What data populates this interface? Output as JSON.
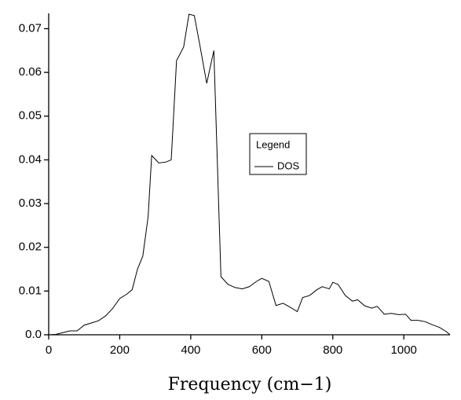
{
  "chart_data": {
    "type": "line",
    "xlabel": "Frequency (cm−1)",
    "legend_title": "Legend",
    "x": [
      0,
      20,
      40,
      60,
      80,
      100,
      120,
      140,
      160,
      180,
      200,
      220,
      235,
      250,
      265,
      280,
      290,
      310,
      330,
      345,
      360,
      380,
      395,
      410,
      425,
      445,
      465,
      485,
      505,
      525,
      545,
      565,
      585,
      600,
      620,
      640,
      660,
      680,
      700,
      715,
      735,
      755,
      770,
      790,
      800,
      815,
      835,
      855,
      870,
      890,
      910,
      925,
      945,
      965,
      985,
      1005,
      1020,
      1040,
      1060,
      1080,
      1100,
      1120,
      1130
    ],
    "series": [
      {
        "name": "DOS",
        "color": "#000000",
        "values": [
          0,
          0.0001,
          0.0005,
          0.0009,
          0.0009,
          0.0022,
          0.0027,
          0.0032,
          0.0043,
          0.006,
          0.0083,
          0.0093,
          0.0103,
          0.015,
          0.018,
          0.027,
          0.041,
          0.0393,
          0.0395,
          0.04,
          0.0627,
          0.0658,
          0.0733,
          0.073,
          0.0665,
          0.0575,
          0.065,
          0.0133,
          0.0115,
          0.0108,
          0.0105,
          0.011,
          0.0122,
          0.0129,
          0.0122,
          0.0067,
          0.0072,
          0.0063,
          0.0053,
          0.0085,
          0.009,
          0.0103,
          0.011,
          0.0105,
          0.012,
          0.0115,
          0.009,
          0.0077,
          0.008,
          0.0066,
          0.0061,
          0.0065,
          0.0047,
          0.0049,
          0.0046,
          0.0047,
          0.0033,
          0.0033,
          0.003,
          0.0023,
          0.0017,
          0.0007,
          0
        ]
      }
    ],
    "xlim": [
      0,
      1130
    ],
    "xticks": [
      0,
      200,
      400,
      600,
      800,
      1000
    ],
    "ylim": [
      0,
      0.0735
    ],
    "yticks": [
      {
        "value": 0,
        "label": "0.0"
      },
      0.01,
      0.02,
      0.03,
      0.04,
      0.05,
      0.06,
      0.07
    ],
    "grid": false,
    "legend": "center"
  }
}
